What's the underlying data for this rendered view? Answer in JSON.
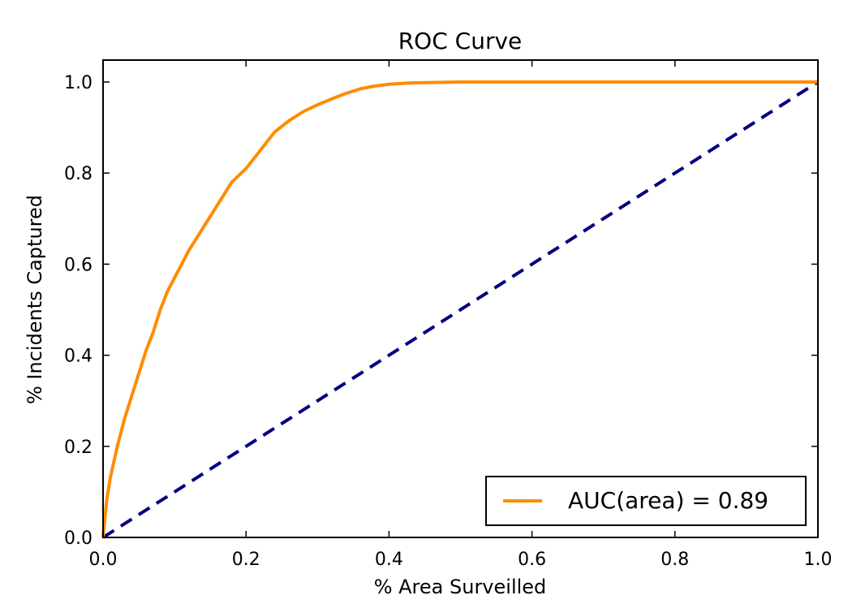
{
  "chart_data": {
    "type": "line",
    "title": "ROC Curve",
    "xlabel": "% Area Surveilled",
    "ylabel": "% Incidents Captured",
    "xlim": [
      0.0,
      1.0
    ],
    "ylim": [
      0.0,
      1.0
    ],
    "xticks": [
      "0.0",
      "0.2",
      "0.4",
      "0.6",
      "0.8",
      "1.0"
    ],
    "yticks": [
      "0.0",
      "0.2",
      "0.4",
      "0.6",
      "0.8",
      "1.0"
    ],
    "grid": false,
    "legend_position": "lower-right",
    "series": [
      {
        "name": "AUC(area) = 0.89",
        "color": "#ff8c00",
        "style": "solid",
        "x": [
          0.0,
          0.005,
          0.01,
          0.02,
          0.03,
          0.04,
          0.05,
          0.06,
          0.07,
          0.08,
          0.09,
          0.1,
          0.12,
          0.14,
          0.16,
          0.18,
          0.2,
          0.22,
          0.24,
          0.26,
          0.28,
          0.3,
          0.32,
          0.34,
          0.36,
          0.38,
          0.4,
          0.43,
          0.46,
          0.5,
          0.6,
          0.7,
          0.8,
          0.9,
          1.0
        ],
        "y": [
          0.0,
          0.08,
          0.13,
          0.2,
          0.26,
          0.31,
          0.36,
          0.41,
          0.45,
          0.5,
          0.54,
          0.57,
          0.63,
          0.68,
          0.73,
          0.78,
          0.81,
          0.85,
          0.89,
          0.915,
          0.935,
          0.95,
          0.963,
          0.975,
          0.985,
          0.991,
          0.995,
          0.998,
          0.999,
          1.0,
          1.0,
          1.0,
          1.0,
          1.0,
          1.0
        ]
      },
      {
        "color": "#000080",
        "style": "dashed",
        "x": [
          0.0,
          1.0
        ],
        "y": [
          0.0,
          1.0
        ]
      }
    ]
  }
}
